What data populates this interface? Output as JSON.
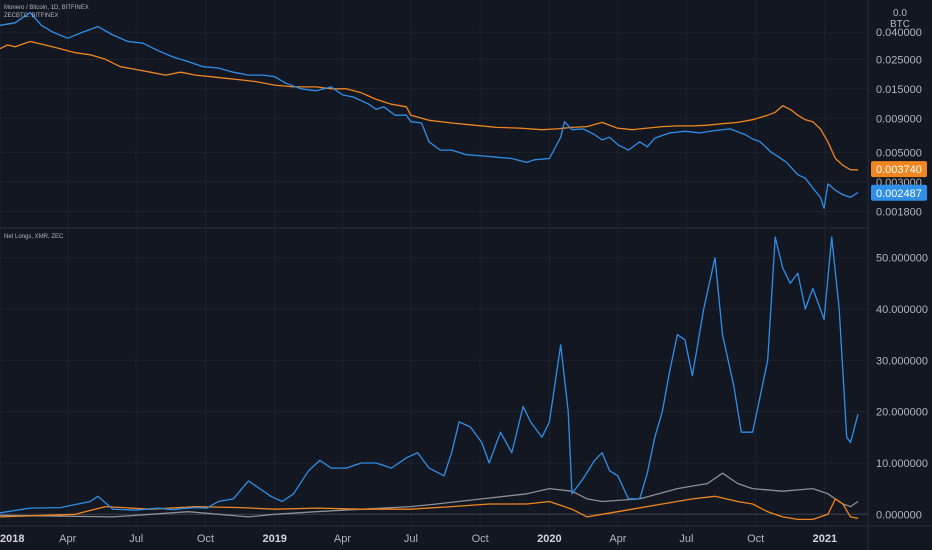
{
  "top_panel": {
    "legend_line1": "Monero / Bitcoin, 1D, BITFINEX",
    "legend_line2": "ZECBTC, BITFINEX",
    "unit_top": "0.0",
    "unit_bottom": "BTC"
  },
  "bottom_panel": {
    "legend_line1": "Net Longs, XMR, ZEC"
  },
  "colors": {
    "background": "#131722",
    "blue": "#2f8fe8",
    "orange": "#f0861f",
    "gray": "#8d8f95",
    "grid": "#1e222d",
    "divider": "#2a2e39"
  },
  "x_axis": {
    "labels": [
      {
        "text": "2018",
        "t": 0,
        "bold": true
      },
      {
        "text": "Apr",
        "t": 90,
        "bold": false
      },
      {
        "text": "Jul",
        "t": 181,
        "bold": false
      },
      {
        "text": "Oct",
        "t": 273,
        "bold": false
      },
      {
        "text": "2019",
        "t": 365,
        "bold": true
      },
      {
        "text": "Apr",
        "t": 455,
        "bold": false
      },
      {
        "text": "Jul",
        "t": 546,
        "bold": false
      },
      {
        "text": "Oct",
        "t": 638,
        "bold": false
      },
      {
        "text": "2020",
        "t": 730,
        "bold": true
      },
      {
        "text": "Apr",
        "t": 821,
        "bold": false
      },
      {
        "text": "Jul",
        "t": 912,
        "bold": false
      },
      {
        "text": "Oct",
        "t": 1004,
        "bold": false
      },
      {
        "text": "2021",
        "t": 1096,
        "bold": true
      }
    ],
    "t_max": 1140
  },
  "chart_data": [
    {
      "type": "line",
      "title": "",
      "y_scale": "log",
      "ylim": [
        0.0015,
        0.065
      ],
      "y_ticks": [
        "0.040000",
        "0.025000",
        "0.015000",
        "0.009000",
        "0.005000",
        "0.003000",
        "0.001800"
      ],
      "last_value_labels": [
        {
          "text": "0.003740",
          "series": "ZECBTC"
        },
        {
          "text": "0.002487",
          "series": "Monero / Bitcoin"
        }
      ],
      "series": [
        {
          "name": "Monero / Bitcoin",
          "color": "#2f8fe8",
          "x": [
            0,
            20,
            40,
            55,
            70,
            90,
            110,
            130,
            150,
            170,
            190,
            210,
            230,
            250,
            270,
            290,
            310,
            330,
            350,
            365,
            380,
            400,
            420,
            440,
            455,
            470,
            490,
            500,
            510,
            525,
            540,
            546,
            560,
            570,
            585,
            600,
            620,
            640,
            660,
            680,
            700,
            710,
            730,
            745,
            750,
            760,
            775,
            790,
            800,
            810,
            821,
            835,
            850,
            860,
            870,
            890,
            910,
            930,
            950,
            970,
            990,
            1000,
            1010,
            1025,
            1035,
            1045,
            1060,
            1070,
            1080,
            1090,
            1095,
            1100,
            1110,
            1120,
            1130,
            1140
          ],
          "y": [
            0.045,
            0.047,
            0.056,
            0.045,
            0.04,
            0.036,
            0.04,
            0.044,
            0.038,
            0.034,
            0.033,
            0.029,
            0.026,
            0.024,
            0.022,
            0.0215,
            0.02,
            0.019,
            0.019,
            0.0185,
            0.0165,
            0.015,
            0.0145,
            0.0155,
            0.0135,
            0.013,
            0.0115,
            0.0105,
            0.011,
            0.0095,
            0.0095,
            0.0085,
            0.0083,
            0.006,
            0.0052,
            0.0052,
            0.0048,
            0.0047,
            0.0046,
            0.0045,
            0.0042,
            0.0044,
            0.0045,
            0.0065,
            0.0085,
            0.0074,
            0.0075,
            0.0068,
            0.0062,
            0.0065,
            0.0057,
            0.0052,
            0.006,
            0.0055,
            0.0064,
            0.007,
            0.0072,
            0.007,
            0.0073,
            0.0075,
            0.0068,
            0.0063,
            0.006,
            0.005,
            0.0046,
            0.0042,
            0.0034,
            0.0032,
            0.0027,
            0.0023,
            0.0019,
            0.0029,
            0.0026,
            0.0024,
            0.0023,
            0.0025
          ]
        },
        {
          "name": "ZECBTC",
          "color": "#f0861f",
          "x": [
            0,
            10,
            20,
            40,
            60,
            80,
            100,
            120,
            140,
            160,
            180,
            200,
            220,
            240,
            260,
            280,
            300,
            320,
            340,
            365,
            390,
            420,
            440,
            460,
            480,
            500,
            520,
            540,
            546,
            570,
            600,
            630,
            660,
            690,
            720,
            740,
            760,
            780,
            800,
            820,
            840,
            860,
            880,
            900,
            920,
            940,
            960,
            980,
            1000,
            1020,
            1030,
            1040,
            1050,
            1060,
            1070,
            1080,
            1090,
            1100,
            1110,
            1120,
            1130,
            1140
          ],
          "y": [
            0.03,
            0.032,
            0.031,
            0.034,
            0.032,
            0.03,
            0.028,
            0.027,
            0.025,
            0.022,
            0.021,
            0.02,
            0.019,
            0.02,
            0.019,
            0.0185,
            0.018,
            0.0175,
            0.017,
            0.016,
            0.0155,
            0.0155,
            0.015,
            0.015,
            0.014,
            0.0125,
            0.0115,
            0.011,
            0.0095,
            0.0087,
            0.0083,
            0.008,
            0.0077,
            0.0076,
            0.0074,
            0.0075,
            0.0077,
            0.0078,
            0.0084,
            0.0076,
            0.0074,
            0.0076,
            0.0078,
            0.0079,
            0.0079,
            0.008,
            0.0082,
            0.0084,
            0.0088,
            0.0095,
            0.01,
            0.0112,
            0.0105,
            0.0095,
            0.0088,
            0.0085,
            0.0075,
            0.006,
            0.0045,
            0.004,
            0.0037,
            0.0037
          ]
        }
      ]
    },
    {
      "type": "line",
      "title": "",
      "ylim": [
        -1.5,
        55
      ],
      "y_ticks": [
        "50.000000",
        "40.000000",
        "30.000000",
        "20.000000",
        "10.000000",
        "0.000000"
      ],
      "series": [
        {
          "name": "XMR",
          "color": "#2f8fe8",
          "x": [
            0,
            40,
            80,
            120,
            130,
            150,
            180,
            210,
            230,
            240,
            260,
            275,
            290,
            310,
            330,
            345,
            360,
            375,
            390,
            410,
            425,
            440,
            460,
            480,
            500,
            520,
            540,
            555,
            570,
            590,
            600,
            610,
            625,
            640,
            650,
            665,
            680,
            695,
            705,
            720,
            730,
            745,
            755,
            760,
            775,
            790,
            800,
            810,
            821,
            835,
            850,
            860,
            870,
            880,
            890,
            900,
            910,
            920,
            935,
            950,
            960,
            975,
            985,
            1000,
            1010,
            1020,
            1030,
            1040,
            1050,
            1060,
            1070,
            1080,
            1095,
            1105,
            1115,
            1125,
            1130,
            1140
          ],
          "y": [
            0.3,
            1.2,
            1.3,
            2.5,
            3.5,
            1.0,
            0.8,
            1.2,
            0.9,
            1.1,
            1.3,
            1.2,
            2.5,
            3.0,
            6.5,
            5.0,
            3.5,
            2.5,
            4.0,
            8.5,
            10.5,
            9.0,
            9.0,
            10.0,
            10.0,
            9.0,
            11.0,
            12.0,
            9.0,
            7.5,
            12.0,
            18.0,
            17.0,
            14.0,
            10.0,
            16.0,
            12.0,
            21.0,
            18.0,
            15.0,
            18.0,
            33.0,
            20.0,
            4.0,
            7.0,
            10.5,
            12.0,
            8.5,
            7.5,
            3.0,
            3.0,
            8.0,
            15.0,
            20.0,
            28.0,
            35.0,
            34.0,
            27.0,
            40.0,
            50.0,
            35.0,
            25.0,
            16.0,
            16.0,
            23.0,
            30.0,
            54.0,
            48.0,
            45.0,
            47.0,
            40.0,
            44.0,
            38.0,
            54.0,
            40.0,
            15.0,
            14.0,
            19.5
          ]
        },
        {
          "name": "ZEC",
          "color": "#f0861f",
          "x": [
            0,
            100,
            140,
            200,
            260,
            320,
            365,
            420,
            480,
            546,
            600,
            650,
            700,
            730,
            760,
            780,
            800,
            840,
            880,
            920,
            950,
            980,
            1000,
            1020,
            1040,
            1060,
            1080,
            1100,
            1110,
            1120,
            1130,
            1140
          ],
          "y": [
            -0.5,
            0.0,
            1.5,
            1.0,
            1.5,
            1.3,
            1.0,
            1.2,
            1.0,
            1.0,
            1.5,
            2.0,
            2.0,
            2.5,
            1.0,
            -0.5,
            0.0,
            1.0,
            2.0,
            3.0,
            3.5,
            2.5,
            2.0,
            0.5,
            -0.5,
            -1.0,
            -1.0,
            0.0,
            3.0,
            2.0,
            -0.5,
            -0.8
          ]
        },
        {
          "name": "",
          "color": "#8d8f95",
          "x": [
            0,
            150,
            250,
            330,
            365,
            420,
            480,
            546,
            580,
            640,
            700,
            730,
            760,
            780,
            800,
            850,
            900,
            940,
            960,
            980,
            1000,
            1040,
            1080,
            1100,
            1110,
            1120,
            1130,
            1140
          ],
          "y": [
            -0.2,
            -0.5,
            0.5,
            -0.5,
            0.0,
            0.5,
            1.0,
            1.5,
            2.0,
            3.0,
            4.0,
            5.0,
            4.5,
            3.0,
            2.5,
            3.0,
            5.0,
            6.0,
            8.0,
            6.0,
            5.0,
            4.5,
            5.0,
            4.0,
            3.0,
            2.0,
            1.5,
            2.5
          ]
        }
      ]
    }
  ]
}
